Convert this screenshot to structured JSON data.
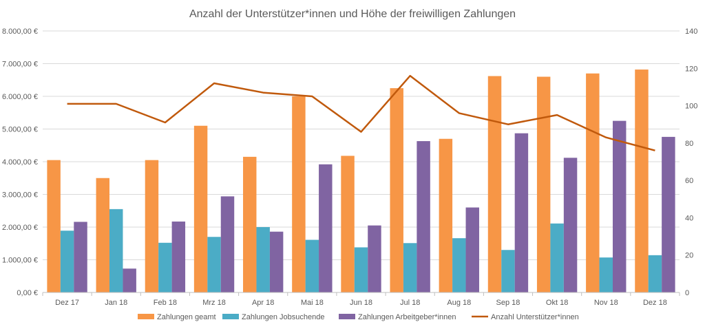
{
  "chart_data": {
    "type": "bar",
    "title": "Anzahl der Unterstützer*innen und Höhe der freiwilligen Zahlungen",
    "xlabel": "",
    "ylabel": "",
    "y2label": "",
    "categories": [
      "Dez 17",
      "Jan 18",
      "Feb 18",
      "Mrz 18",
      "Apr 18",
      "Mai 18",
      "Jun 18",
      "Jul 18",
      "Aug 18",
      "Sep 18",
      "Okt 18",
      "Nov 18",
      "Dez 18"
    ],
    "ylim": [
      0,
      8000
    ],
    "y_ticks": [
      "0,00 €",
      "1.000,00 €",
      "2.000,00 €",
      "3.000,00 €",
      "4.000,00 €",
      "5.000,00 €",
      "6.000,00 €",
      "7.000,00 €",
      "8.000,00 €"
    ],
    "y2lim": [
      0,
      140
    ],
    "y2_ticks": [
      "0",
      "20",
      "40",
      "60",
      "80",
      "100",
      "120",
      "140"
    ],
    "grid": true,
    "legend_position": "bottom",
    "series": [
      {
        "name": "Zahlungen geamt",
        "type": "bar",
        "axis": "left",
        "color": "#F79646",
        "values": [
          4050,
          3500,
          4050,
          5100,
          4150,
          6000,
          4180,
          6250,
          4700,
          6620,
          6600,
          6700,
          6820
        ]
      },
      {
        "name": "Zahlungen Jobsuchende",
        "type": "bar",
        "axis": "left",
        "color": "#4BACC6",
        "values": [
          1890,
          2550,
          1520,
          1700,
          2000,
          1610,
          1380,
          1510,
          1660,
          1300,
          2110,
          1070,
          1140
        ]
      },
      {
        "name": "Zahlungen Arbeitgeber*innen",
        "type": "bar",
        "axis": "left",
        "color": "#8064A2",
        "values": [
          2160,
          730,
          2170,
          2940,
          1860,
          3920,
          2050,
          4630,
          2600,
          4870,
          4120,
          5250,
          4760
        ]
      },
      {
        "name": "Anzahl Unterstützer*innen",
        "type": "line",
        "axis": "right",
        "color": "#C0590C",
        "values": [
          101,
          101,
          91,
          112,
          107,
          105,
          86,
          116,
          96,
          90,
          95,
          83,
          76
        ]
      }
    ]
  }
}
